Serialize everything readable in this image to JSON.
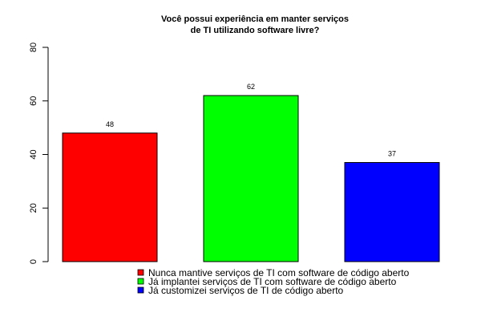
{
  "chart_data": {
    "type": "bar",
    "title": "Você possui experiência em manter serviços\nde TI utilizando software livre?",
    "categories": [
      "Nunca mantive serviços de TI com software de código aberto",
      "Já implantei serviços de TI com software de código aberto",
      "Já customizei serviços de TI de código aberto"
    ],
    "values": [
      48,
      62,
      37
    ],
    "colors": [
      "#ff0000",
      "#00ff00",
      "#0000ff"
    ],
    "ylim": [
      0,
      80
    ],
    "yticks": [
      0,
      20,
      40,
      60,
      80
    ],
    "xlabel": "",
    "ylabel": "",
    "grid": false,
    "legend": {
      "placement": "bottom-center",
      "entries": [
        "Nunca mantive serviços de TI com software de código aberto",
        "Já implantei serviços de TI com software de código aberto",
        "Já customizei serviços de TI de código aberto"
      ]
    }
  }
}
